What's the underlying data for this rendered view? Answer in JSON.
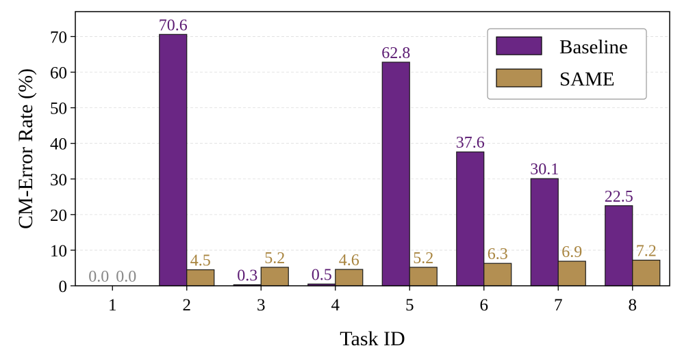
{
  "chart_data": {
    "type": "bar",
    "title": "",
    "xlabel": "Task ID",
    "ylabel": "CM-Error Rate (%)",
    "categories": [
      "1",
      "2",
      "3",
      "4",
      "5",
      "6",
      "7",
      "8"
    ],
    "ylim": [
      0,
      77
    ],
    "yticks": [
      0,
      10,
      20,
      30,
      40,
      50,
      60,
      70
    ],
    "grid": true,
    "legend_position": "top-right",
    "series": [
      {
        "name": "Baseline",
        "color": "#6a2684",
        "label_color": "#5b1a72",
        "values": [
          0.0,
          70.6,
          0.3,
          0.5,
          62.8,
          37.6,
          30.1,
          22.5
        ],
        "labels": [
          "0.0",
          "70.6",
          "0.3",
          "0.5",
          "62.8",
          "37.6",
          "30.1",
          "22.5"
        ]
      },
      {
        "name": "SAME",
        "color": "#b38f52",
        "label_color": "#a8843f",
        "values": [
          0.0,
          4.5,
          5.2,
          4.6,
          5.2,
          6.3,
          6.9,
          7.2
        ],
        "labels": [
          "0.0",
          "4.5",
          "5.2",
          "4.6",
          "5.2",
          "6.3",
          "6.9",
          "7.2"
        ]
      }
    ],
    "zero_label_color": "#888888"
  }
}
